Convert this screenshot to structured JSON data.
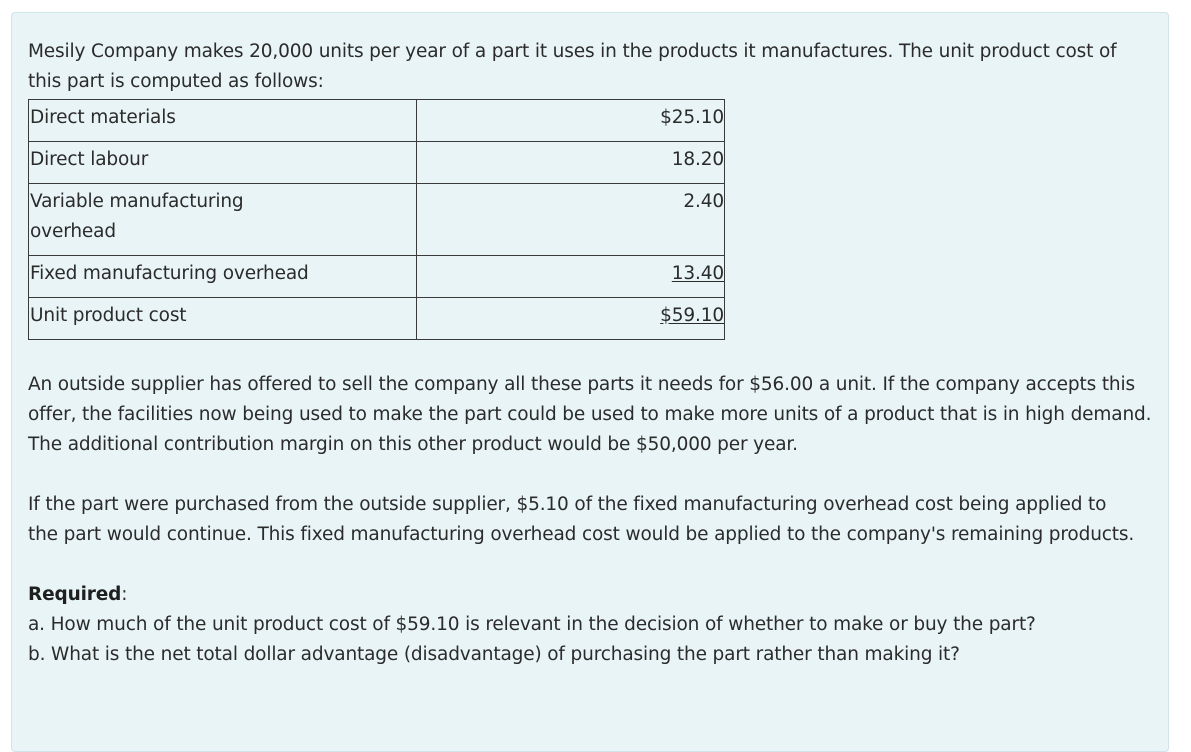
{
  "intro": "Mesily Company makes 20,000 units per year of a part it uses in the products it manufactures. The unit product cost of this part is computed as follows:",
  "cost_table": [
    {
      "label": "Direct materials",
      "amount": "$25.10"
    },
    {
      "label": "Direct labour",
      "amount": "18.20"
    },
    {
      "label": "Variable manufacturing overhead",
      "amount": "2.40"
    },
    {
      "label": "Fixed manufacturing overhead",
      "amount": "13.40"
    },
    {
      "label": "Unit product cost",
      "amount": "$59.10"
    }
  ],
  "paragraph2": "An outside supplier has offered to sell the company all these parts it needs for $56.00 a unit. If the company accepts this offer, the facilities now being used to make the part could be used to make more units of a product that is in high demand. The additional contribution margin on this other product would be $50,000 per year.",
  "paragraph3": "If the part were purchased from the outside supplier, $5.10 of the fixed manufacturing overhead cost being applied to the part would continue. This fixed manufacturing overhead cost would be applied to the company's remaining products.",
  "required": {
    "heading": "Required",
    "colon": ":",
    "a": "a. How much of the unit product cost of $59.10 is relevant in the decision of whether to make or buy the part?",
    "b": "b. What is the net total dollar advantage (disadvantage) of purchasing the part rather than making it?"
  }
}
